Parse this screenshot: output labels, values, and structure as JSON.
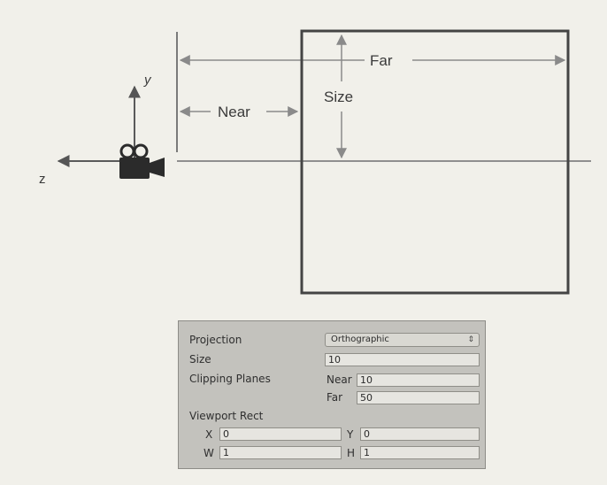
{
  "diagram": {
    "axis_y_label": "y",
    "axis_z_label": "z",
    "near_label": "Near",
    "far_label": "Far",
    "size_label": "Size",
    "camera_icon": "movie-camera-icon"
  },
  "inspector": {
    "projection_label": "Projection",
    "projection_value": "Orthographic",
    "size_label": "Size",
    "size_value": "10",
    "clipping_label": "Clipping Planes",
    "near_label": "Near",
    "near_value": "10",
    "far_label": "Far",
    "far_value": "50",
    "viewport_label": "Viewport Rect",
    "x_label": "X",
    "x_value": "0",
    "y_label": "Y",
    "y_value": "0",
    "w_label": "W",
    "w_value": "1",
    "h_label": "H",
    "h_value": "1"
  }
}
